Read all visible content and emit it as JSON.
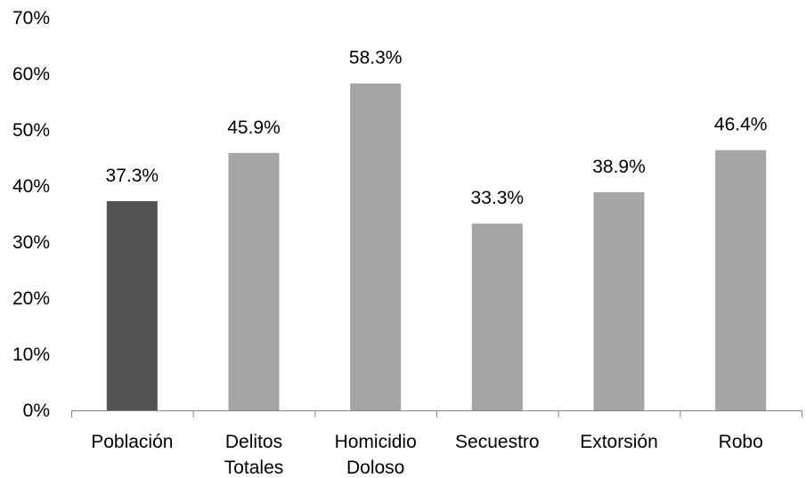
{
  "chart_data": {
    "type": "bar",
    "categories": [
      [
        "Población"
      ],
      [
        "Delitos",
        "Totales"
      ],
      [
        "Homicidio",
        "Doloso"
      ],
      [
        "Secuestro"
      ],
      [
        "Extorsión"
      ],
      [
        "Robo"
      ]
    ],
    "values": [
      37.3,
      45.9,
      58.3,
      33.3,
      38.9,
      46.4
    ],
    "data_labels": [
      "37.3%",
      "45.9%",
      "58.3%",
      "33.3%",
      "38.9%",
      "46.4%"
    ],
    "y_ticks": [
      0,
      10,
      20,
      30,
      40,
      50,
      60,
      70
    ],
    "y_tick_labels": [
      "0%",
      "10%",
      "20%",
      "30%",
      "40%",
      "50%",
      "60%",
      "70%"
    ],
    "ylim": [
      0,
      70
    ],
    "unit": "%",
    "grid": false,
    "legend": "none",
    "colors": {
      "highlight": "#525252",
      "bar": "#a5a5a5",
      "axis": "#868686",
      "text": "#000000"
    },
    "highlight_index": 0
  }
}
